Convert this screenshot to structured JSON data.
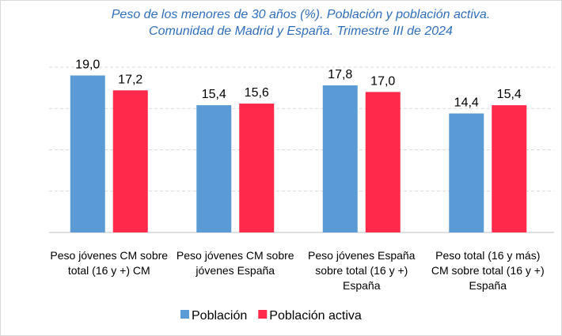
{
  "chart_data": {
    "type": "bar",
    "title": "Peso de los menores de 30 años (%). Población y población activa. Comunidad de Madrid y España. Trimestre III de 2024",
    "categories": [
      "Peso jóvenes CM sobre total (16 y +) CM",
      "Peso jóvenes CM sobre jóvenes España",
      "Peso jóvenes España sobre total (16 y +) España",
      "Peso total (16 y más) CM sobre total (16 y +) España"
    ],
    "series": [
      {
        "name": "Población",
        "color": "#5b9bd5",
        "values": [
          19.0,
          15.4,
          17.8,
          14.4
        ],
        "value_labels": [
          "19,0",
          "15,4",
          "17,8",
          "14,4"
        ]
      },
      {
        "name": "Población activa",
        "color": "#ff2a4b",
        "values": [
          17.2,
          15.6,
          17.0,
          15.4
        ],
        "value_labels": [
          "17,2",
          "15,6",
          "17,0",
          "15,4"
        ]
      }
    ],
    "ylim": [
      0,
      20
    ],
    "yticks": [
      0,
      5,
      10,
      15,
      20
    ],
    "grid": true,
    "legend": "bottom"
  }
}
